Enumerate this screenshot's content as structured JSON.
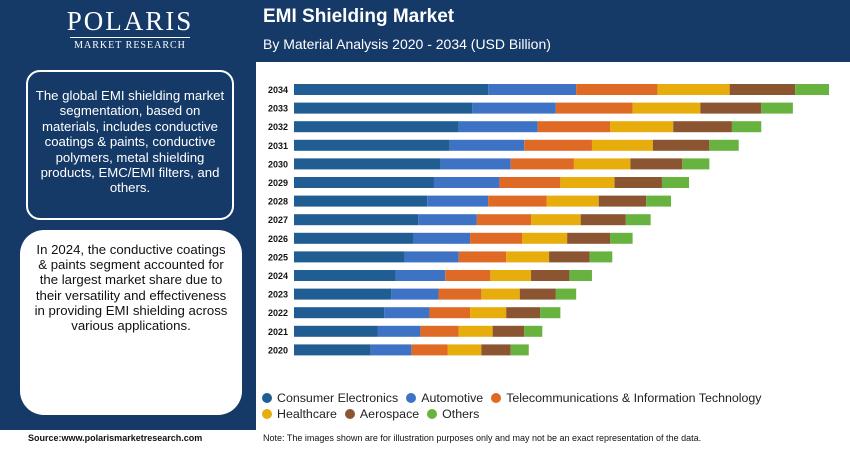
{
  "brand": {
    "name": "POLARIS",
    "sub": "MARKET RESEARCH"
  },
  "header": {
    "title": "EMI Shielding Market",
    "subtitle": "By Material Analysis 2020 - 2034 (USD Billion)"
  },
  "panel": {
    "text1": "The global EMI shielding market segmentation, based on materials, includes conductive coatings & paints, conductive polymers, metal shielding products, EMC/EMI filters, and others.",
    "text2": "In 2024, the conductive coatings & paints segment accounted for the largest market share due to their versatility and effectiveness in providing EMI shielding across various applications."
  },
  "footer": {
    "source": "Source:www.polarismarketresearch.com",
    "note": "Note: The images shown are for illustration purposes only and may not be an exact representation of the data."
  },
  "colors": {
    "header_bg": "#163a68",
    "series": [
      "#1f5d92",
      "#3d72c4",
      "#df6a26",
      "#e6ad0c",
      "#8c5531",
      "#68b33f"
    ]
  },
  "chart_data": {
    "type": "bar",
    "orientation": "horizontal",
    "stacked": true,
    "title": "EMI Shielding Market",
    "subtitle": "By Material Analysis 2020 - 2034 (USD Billion)",
    "categories": [
      "2034",
      "2033",
      "2032",
      "2031",
      "2030",
      "2029",
      "2028",
      "2027",
      "2026",
      "2025",
      "2024",
      "2023",
      "2022",
      "2021",
      "2020"
    ],
    "series": [
      {
        "name": "Consumer Electronics",
        "values": [
          8.6,
          7.9,
          7.3,
          6.9,
          6.5,
          6.2,
          5.9,
          5.5,
          5.3,
          4.9,
          4.5,
          4.3,
          4.0,
          3.7,
          3.4
        ]
      },
      {
        "name": "Automotive",
        "values": [
          3.9,
          3.7,
          3.5,
          3.3,
          3.1,
          2.9,
          2.7,
          2.6,
          2.5,
          2.4,
          2.2,
          2.1,
          2.0,
          1.9,
          1.8
        ]
      },
      {
        "name": "Telecommunications & Information Technology",
        "values": [
          3.6,
          3.4,
          3.2,
          3.0,
          2.8,
          2.7,
          2.6,
          2.4,
          2.3,
          2.1,
          2.0,
          1.9,
          1.8,
          1.7,
          1.6
        ]
      },
      {
        "name": "Healthcare",
        "values": [
          3.2,
          3.0,
          2.8,
          2.7,
          2.5,
          2.4,
          2.3,
          2.2,
          2.0,
          1.9,
          1.8,
          1.7,
          1.6,
          1.5,
          1.5
        ]
      },
      {
        "name": "Aerospace",
        "values": [
          2.9,
          2.7,
          2.6,
          2.5,
          2.3,
          2.1,
          2.1,
          2.0,
          1.9,
          1.8,
          1.7,
          1.6,
          1.5,
          1.4,
          1.3
        ]
      },
      {
        "name": "Others",
        "values": [
          1.5,
          1.4,
          1.3,
          1.3,
          1.2,
          1.2,
          1.1,
          1.1,
          1.0,
          1.0,
          1.0,
          0.9,
          0.9,
          0.8,
          0.8
        ]
      }
    ],
    "grid": false,
    "legend": "bottom"
  }
}
